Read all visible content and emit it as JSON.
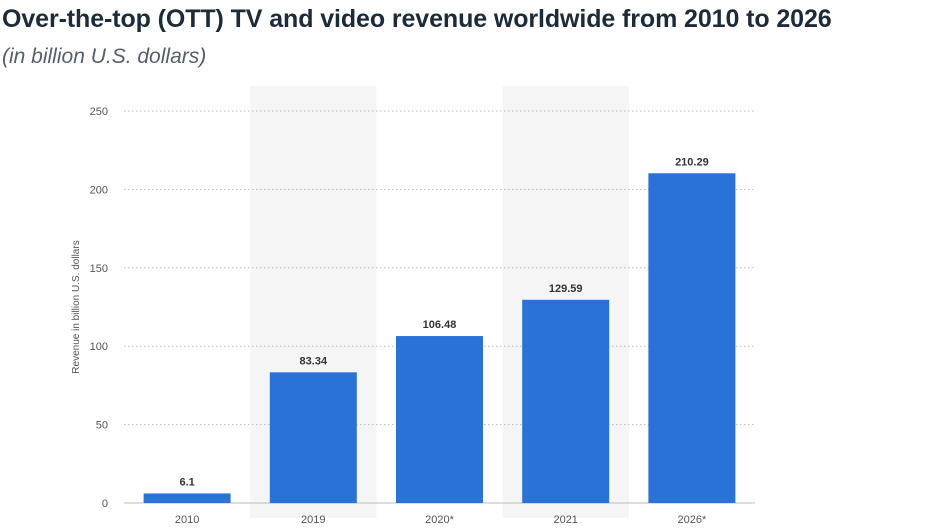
{
  "title": "Over-the-top (OTT) TV and video revenue worldwide from 2010 to 2026",
  "subtitle": "(in billion U.S. dollars)",
  "colors": {
    "bar": "#2a72d8",
    "band": "#f5f5f5",
    "grid": "#bbbbbb"
  },
  "chart_data": {
    "type": "bar",
    "categories": [
      "2010",
      "2019",
      "2020*",
      "2021",
      "2026*"
    ],
    "values": [
      6.1,
      83.34,
      106.48,
      129.59,
      210.29
    ],
    "value_labels": [
      "6.1",
      "83.34",
      "106.48",
      "129.59",
      "210.29"
    ],
    "ylabel": "Revenue in billion U.S. dollars",
    "ylim": [
      0,
      250
    ],
    "yticks": [
      0,
      50,
      100,
      150,
      200,
      250
    ],
    "grid": true,
    "legend": "none"
  }
}
